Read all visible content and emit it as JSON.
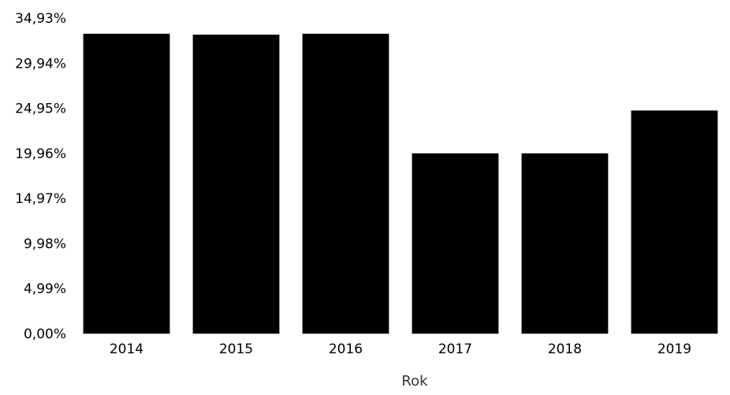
{
  "chart_data": {
    "type": "bar",
    "title": "",
    "xlabel": "Rok",
    "ylabel": "",
    "categories": [
      "2014",
      "2015",
      "2016",
      "2017",
      "2018",
      "2019"
    ],
    "values": [
      33.2,
      33.1,
      33.2,
      19.96,
      19.96,
      24.7
    ],
    "ylim": [
      0,
      34.93
    ],
    "yticks": [
      "0,00%",
      "4,99%",
      "9,98%",
      "14,97%",
      "19,96%",
      "24,95%",
      "29,94%",
      "34,93%"
    ],
    "bar_color": "#000000",
    "grid": false,
    "legend": "none"
  }
}
